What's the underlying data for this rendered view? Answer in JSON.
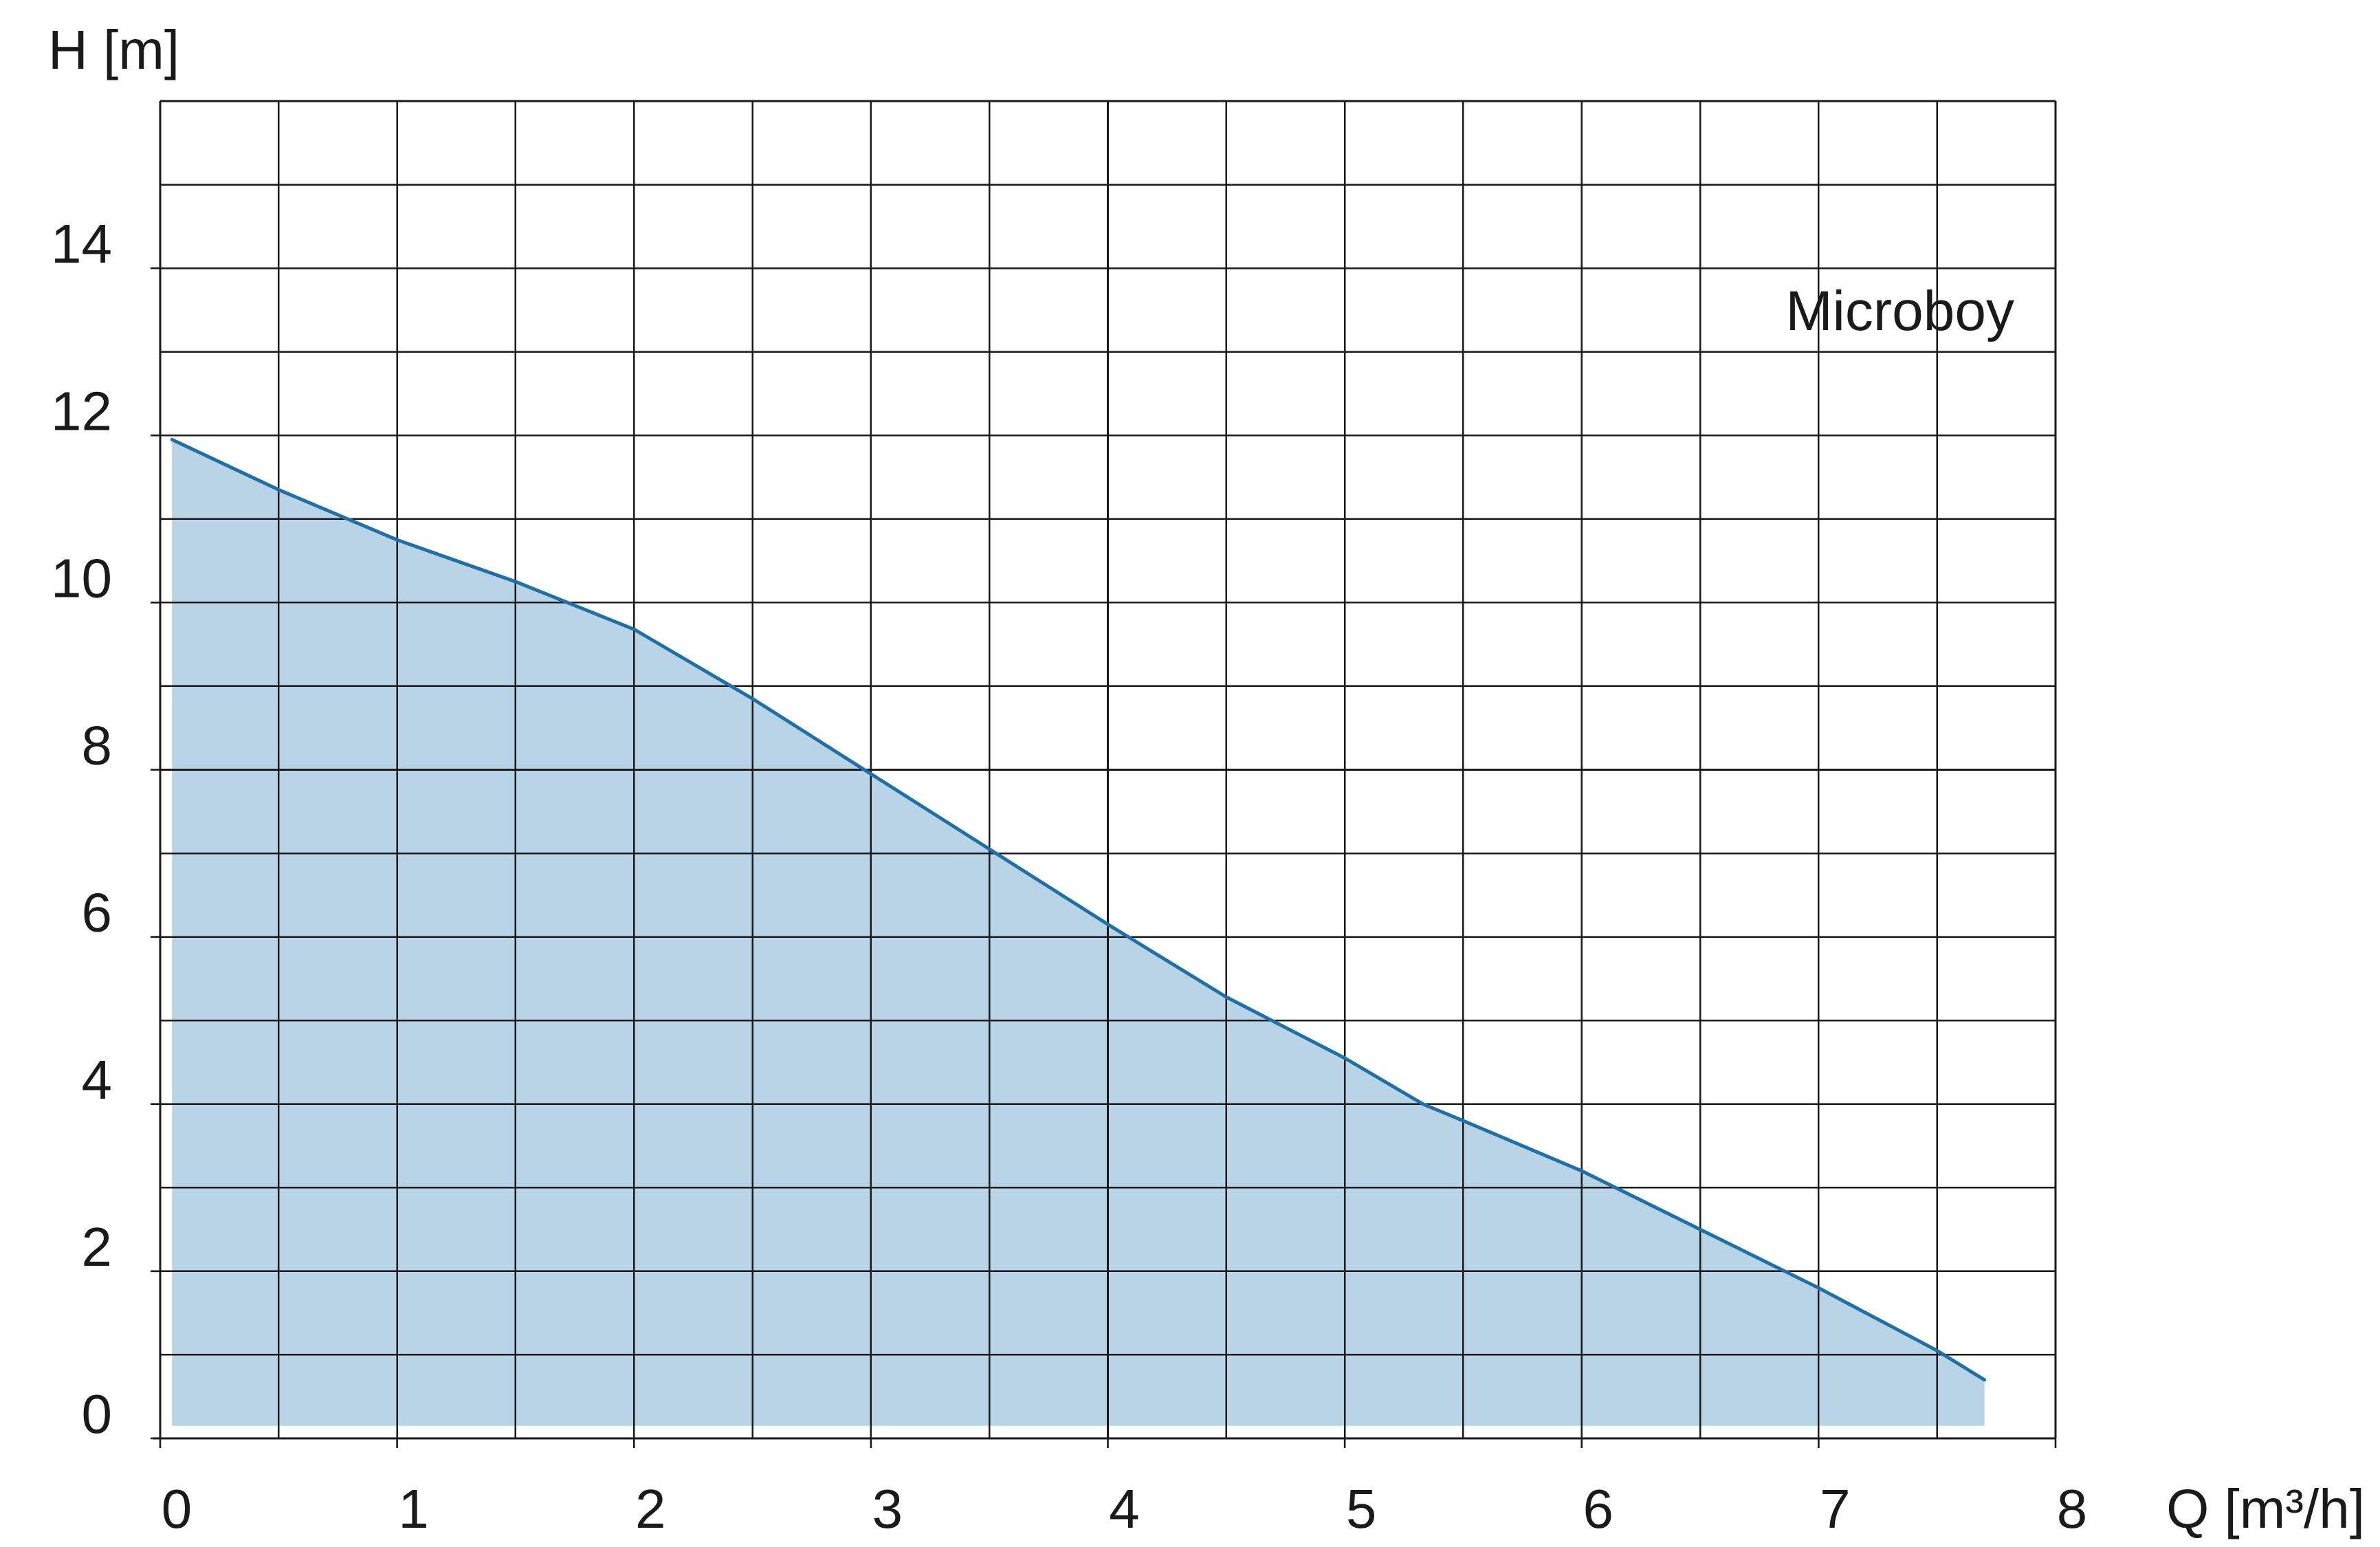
{
  "chart_data": {
    "type": "area",
    "title": "",
    "series": [
      {
        "name": "Microboy",
        "color": "#1f6fa8",
        "fill_color": "#b9d4e6",
        "x": [
          0.05,
          0.5,
          1,
          1.5,
          2,
          2.5,
          3,
          3.5,
          4,
          4.5,
          5,
          5.33,
          5.5,
          6,
          6.5,
          7,
          7.5,
          7.7
        ],
        "y": [
          11.95,
          11.35,
          10.75,
          10.25,
          9.68,
          8.85,
          7.95,
          7.05,
          6.15,
          5.28,
          4.55,
          4.0,
          3.8,
          3.2,
          2.5,
          1.8,
          1.05,
          0.7
        ]
      }
    ],
    "curve_label": "Microboy",
    "xlabel": "Q [m³/h]",
    "ylabel": "H [m]",
    "xlim": [
      0,
      8
    ],
    "ylim": [
      0,
      16
    ],
    "x_ticks": [
      "0",
      "1",
      "2",
      "3",
      "4",
      "5",
      "6",
      "7",
      "8"
    ],
    "y_ticks": [
      "0",
      "2",
      "4",
      "6",
      "8",
      "10",
      "12",
      "14"
    ],
    "grid": true,
    "x_minor_step": 0.5,
    "y_minor_step": 1
  }
}
